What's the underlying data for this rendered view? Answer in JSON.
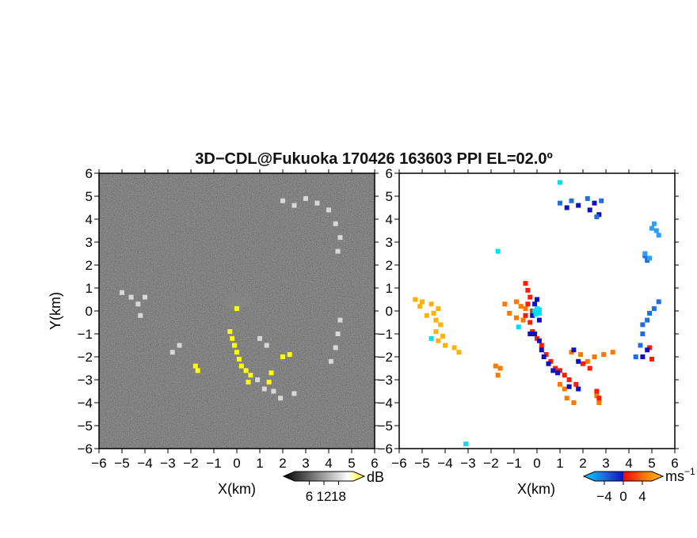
{
  "title": "3D−CDL@Fukuoka 170426 163603 PPI EL=02.0º",
  "chart_data": [
    {
      "type": "heatmap",
      "panel": "left",
      "quantity": "reflectivity-like intensity",
      "xlabel": "X(km)",
      "ylabel": "Y(km)",
      "xlim": [
        -6,
        6
      ],
      "ylim": [
        -6,
        6
      ],
      "x_ticks": [
        -6,
        -5,
        -4,
        -3,
        -2,
        -1,
        0,
        1,
        2,
        3,
        4,
        5,
        6
      ],
      "y_ticks": [
        -6,
        -5,
        -4,
        -3,
        -2,
        -1,
        0,
        1,
        2,
        3,
        4,
        5,
        6
      ],
      "background": "dark noise field",
      "colorbar": {
        "unit": "dB",
        "ticks": [
          6,
          12,
          18
        ],
        "colors": [
          "#000000",
          "#ffffff",
          "#ffff00"
        ]
      },
      "features": [
        {
          "name": "bright echoes",
          "color": "#ffff00",
          "points": [
            [
              -0.3,
              -0.9
            ],
            [
              -0.2,
              -1.2
            ],
            [
              -0.1,
              -1.5
            ],
            [
              0.0,
              -1.8
            ],
            [
              0.1,
              -2.1
            ],
            [
              0.2,
              -2.4
            ],
            [
              0.4,
              -2.6
            ],
            [
              0.6,
              -2.8
            ],
            [
              -1.8,
              -2.4
            ],
            [
              -1.7,
              -2.6
            ],
            [
              1.5,
              -2.7
            ],
            [
              1.4,
              -3.1
            ],
            [
              0.5,
              -3.1
            ],
            [
              2.0,
              -2.0
            ],
            [
              2.3,
              -1.9
            ],
            [
              0.0,
              0.1
            ]
          ]
        },
        {
          "name": "ring echoes",
          "color": "#d8d8d8",
          "points": [
            [
              2.0,
              4.8
            ],
            [
              2.5,
              4.6
            ],
            [
              3.0,
              4.9
            ],
            [
              3.5,
              4.7
            ],
            [
              4.0,
              4.4
            ],
            [
              4.3,
              3.8
            ],
            [
              4.5,
              3.2
            ],
            [
              4.4,
              2.6
            ],
            [
              4.5,
              -0.4
            ],
            [
              4.4,
              -1.0
            ],
            [
              4.3,
              -1.6
            ],
            [
              4.1,
              -2.2
            ],
            [
              -5.0,
              0.8
            ],
            [
              -4.6,
              0.6
            ],
            [
              -4.3,
              0.3
            ],
            [
              -4.0,
              0.6
            ],
            [
              -4.2,
              -0.2
            ],
            [
              -2.8,
              -1.8
            ],
            [
              -2.5,
              -1.5
            ],
            [
              1.3,
              -1.5
            ],
            [
              0.9,
              -3.0
            ],
            [
              1.2,
              -3.4
            ],
            [
              1.6,
              -3.5
            ],
            [
              1.9,
              -3.8
            ],
            [
              2.5,
              -3.6
            ],
            [
              1.0,
              -1.2
            ]
          ]
        }
      ]
    },
    {
      "type": "scatter",
      "panel": "right",
      "quantity": "radial velocity",
      "xlabel": "X(km)",
      "xlim": [
        -6,
        6
      ],
      "ylim": [
        -6,
        6
      ],
      "x_ticks": [
        -6,
        -5,
        -4,
        -3,
        -2,
        -1,
        0,
        1,
        2,
        3,
        4,
        5,
        6
      ],
      "y_ticks": [
        -6,
        -5,
        -4,
        -3,
        -2,
        -1,
        0,
        1,
        2,
        3,
        4,
        5,
        6
      ],
      "colorbar": {
        "unit": "ms",
        "unit_exponent": "−1",
        "ticks": [
          "−4",
          "0",
          "4"
        ],
        "colors": [
          "#00d0ff",
          "#1f6fe0",
          "#1010c0",
          "#ff0000",
          "#ff7000",
          "#ffc000"
        ]
      },
      "series": [
        {
          "velocity": 3.5,
          "color": "#ffb300",
          "points": [
            [
              -4.6,
              0.3
            ],
            [
              -4.3,
              0.1
            ],
            [
              -4.5,
              -0.1
            ],
            [
              -4.4,
              -0.4
            ],
            [
              -4.2,
              -0.6
            ],
            [
              -4.4,
              -0.9
            ],
            [
              -4.1,
              -1.1
            ],
            [
              -4.3,
              -1.3
            ],
            [
              -4.0,
              -1.5
            ],
            [
              -3.6,
              -1.6
            ],
            [
              -3.4,
              -1.8
            ],
            [
              -5.3,
              0.5
            ],
            [
              -5.1,
              0.2
            ],
            [
              -5.0,
              0.4
            ],
            [
              -4.8,
              -0.2
            ]
          ]
        },
        {
          "velocity": 2.0,
          "color": "#ff7800",
          "points": [
            [
              -1.8,
              -2.4
            ],
            [
              -1.6,
              -2.5
            ],
            [
              -1.7,
              -2.8
            ],
            [
              -0.9,
              0.4
            ],
            [
              -0.7,
              0.2
            ],
            [
              -0.5,
              0.1
            ],
            [
              -0.9,
              -0.3
            ],
            [
              -1.2,
              -0.1
            ],
            [
              -1.4,
              0.3
            ],
            [
              -0.6,
              -0.4
            ],
            [
              1.9,
              -1.9
            ],
            [
              2.2,
              -2.2
            ],
            [
              2.5,
              -2.0
            ],
            [
              2.9,
              -1.9
            ],
            [
              3.3,
              -1.8
            ],
            [
              2.6,
              -3.7
            ],
            [
              2.7,
              -4.0
            ],
            [
              1.2,
              -3.4
            ],
            [
              1.0,
              -3.2
            ],
            [
              1.3,
              -3.8
            ],
            [
              1.6,
              -4.0
            ],
            [
              1.5,
              -1.8
            ]
          ]
        },
        {
          "velocity": 1.0,
          "color": "#ff1a00",
          "points": [
            [
              -0.5,
              1.2
            ],
            [
              -0.4,
              0.9
            ],
            [
              -0.3,
              0.6
            ],
            [
              -0.4,
              0.3
            ],
            [
              -0.2,
              0.0
            ],
            [
              -0.5,
              -0.2
            ],
            [
              -0.3,
              -0.5
            ],
            [
              -0.2,
              -0.9
            ],
            [
              0.0,
              -1.2
            ],
            [
              0.2,
              -1.5
            ],
            [
              0.4,
              -1.9
            ],
            [
              0.6,
              -2.2
            ],
            [
              0.8,
              -2.5
            ],
            [
              1.0,
              -2.6
            ],
            [
              1.2,
              -2.8
            ],
            [
              1.4,
              -3.0
            ],
            [
              1.7,
              -3.2
            ],
            [
              2.0,
              -2.3
            ],
            [
              2.3,
              -2.5
            ],
            [
              2.6,
              -3.5
            ],
            [
              2.7,
              -3.8
            ],
            [
              4.9,
              -1.6
            ],
            [
              5.0,
              -2.1
            ]
          ]
        },
        {
          "velocity": -1.0,
          "color": "#1010c0",
          "points": [
            [
              -0.1,
              0.3
            ],
            [
              0.0,
              0.5
            ],
            [
              -0.2,
              -0.2
            ],
            [
              0.1,
              -0.4
            ],
            [
              -0.3,
              -1.0
            ],
            [
              -0.1,
              -1.0
            ],
            [
              0.1,
              -1.3
            ],
            [
              0.2,
              -1.7
            ],
            [
              0.3,
              -2.0
            ],
            [
              0.5,
              -2.3
            ],
            [
              0.7,
              -2.6
            ],
            [
              0.9,
              -2.7
            ],
            [
              1.4,
              -3.3
            ],
            [
              1.8,
              -3.4
            ],
            [
              1.8,
              -2.2
            ],
            [
              1.6,
              -1.7
            ],
            [
              4.6,
              -2.0
            ],
            [
              4.8,
              -1.7
            ],
            [
              1.3,
              4.5
            ],
            [
              1.8,
              4.6
            ],
            [
              2.3,
              4.4
            ],
            [
              2.7,
              4.2
            ],
            [
              2.5,
              4.7
            ]
          ]
        },
        {
          "velocity": -2.5,
          "color": "#1f6fe0",
          "points": [
            [
              4.6,
              -0.6
            ],
            [
              4.8,
              -0.4
            ],
            [
              4.9,
              -0.1
            ],
            [
              5.1,
              0.1
            ],
            [
              5.3,
              0.4
            ],
            [
              4.6,
              -1.0
            ],
            [
              4.5,
              -1.5
            ],
            [
              4.3,
              -2.0
            ],
            [
              4.7,
              2.4
            ],
            [
              4.8,
              2.2
            ],
            [
              1.0,
              4.7
            ],
            [
              1.5,
              4.8
            ],
            [
              2.2,
              4.9
            ],
            [
              2.8,
              4.8
            ],
            [
              2.6,
              4.1
            ]
          ]
        },
        {
          "velocity": -4.0,
          "color": "#2f9fff",
          "points": [
            [
              5.0,
              3.6
            ],
            [
              5.2,
              3.5
            ],
            [
              5.1,
              3.8
            ],
            [
              5.3,
              3.3
            ],
            [
              4.7,
              2.5
            ],
            [
              4.9,
              2.3
            ]
          ]
        },
        {
          "velocity": -5.0,
          "color": "#00e0f0",
          "points": [
            [
              0.0,
              -0.1
            ],
            [
              -0.1,
              0.0
            ],
            [
              0.1,
              0.05
            ],
            [
              0.0,
              0.1
            ],
            [
              -0.05,
              -0.15
            ],
            [
              0.1,
              -0.1
            ],
            [
              -1.7,
              2.6
            ],
            [
              -4.6,
              -1.2
            ],
            [
              -3.1,
              -5.8
            ],
            [
              1.0,
              5.6
            ],
            [
              -0.8,
              -0.7
            ]
          ]
        }
      ]
    }
  ]
}
